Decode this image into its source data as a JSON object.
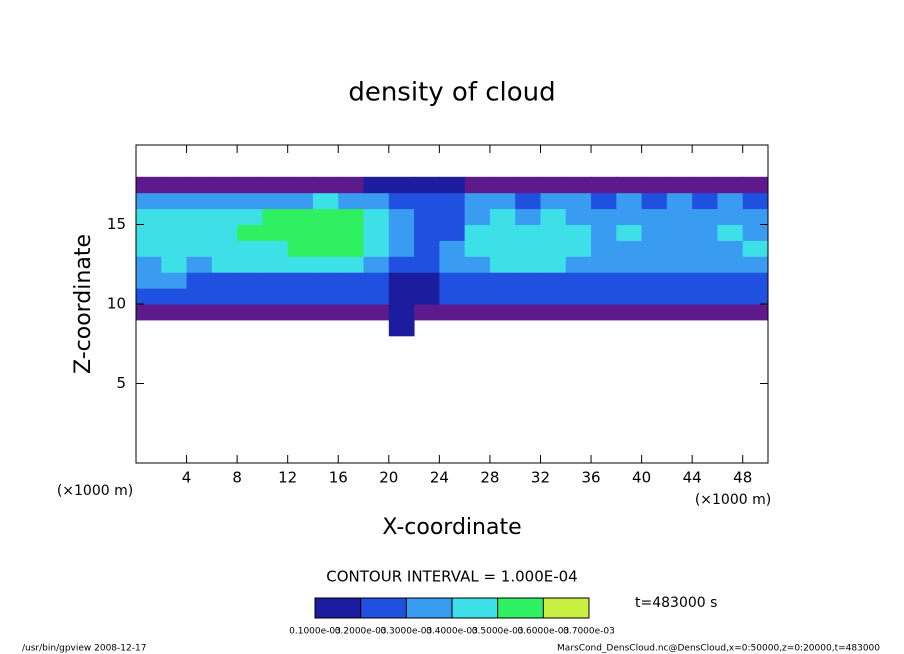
{
  "chart_data": {
    "type": "contour",
    "title": "density of cloud",
    "x_label": "X-coordinate",
    "y_label": "Z-coordinate",
    "x_unit": "(×1000 m)",
    "y_unit": "(×1000 m)",
    "xlim": [
      0,
      50
    ],
    "ylim": [
      0,
      20
    ],
    "xticks": [
      4,
      8,
      12,
      16,
      20,
      24,
      28,
      32,
      36,
      40,
      44,
      48
    ],
    "yticks": [
      5,
      10,
      15
    ],
    "x": [
      1,
      3,
      5,
      7,
      9,
      11,
      13,
      15,
      17,
      19,
      21,
      23,
      25,
      27,
      29,
      31,
      33,
      35,
      37,
      39,
      41,
      43,
      45,
      47,
      49
    ],
    "z": [
      8.5,
      9.5,
      10.5,
      11.5,
      12.5,
      13.5,
      14.5,
      15.5,
      16.5,
      17.5
    ],
    "values": [
      [
        0,
        0,
        0,
        0,
        0,
        0,
        0,
        0,
        0,
        0,
        0.00015,
        0,
        0,
        0,
        0,
        0,
        0,
        0,
        0,
        0,
        0,
        0,
        0,
        0,
        0
      ],
      [
        8e-05,
        8e-05,
        8e-05,
        8e-05,
        8e-05,
        8e-05,
        8e-05,
        8e-05,
        8e-05,
        8e-05,
        0.00018,
        8e-05,
        8e-05,
        8e-05,
        8e-05,
        8e-05,
        8e-05,
        8e-05,
        8e-05,
        8e-05,
        8e-05,
        8e-05,
        8e-05,
        8e-05,
        8e-05
      ],
      [
        0.00022,
        0.00022,
        0.00022,
        0.00022,
        0.00022,
        0.00022,
        0.00022,
        0.00022,
        0.00022,
        0.00022,
        0.00015,
        0.00012,
        0.00022,
        0.00022,
        0.00022,
        0.00022,
        0.00022,
        0.00022,
        0.00022,
        0.00022,
        0.00022,
        0.00022,
        0.00022,
        0.00022,
        0.00022
      ],
      [
        0.0003,
        0.0003,
        0.00028,
        0.00028,
        0.00028,
        0.00028,
        0.00028,
        0.00028,
        0.00028,
        0.00028,
        0.00018,
        0.00015,
        0.00028,
        0.00028,
        0.00028,
        0.00028,
        0.00028,
        0.00028,
        0.00028,
        0.00028,
        0.00028,
        0.00028,
        0.00028,
        0.00028,
        0.00028
      ],
      [
        0.00038,
        0.0004,
        0.00038,
        0.0004,
        0.00042,
        0.0004,
        0.00045,
        0.00045,
        0.00042,
        0.00038,
        0.0002,
        0.0002,
        0.0003,
        0.00038,
        0.0004,
        0.00042,
        0.0004,
        0.00038,
        0.00035,
        0.00035,
        0.00035,
        0.00033,
        0.00035,
        0.00033,
        0.00035
      ],
      [
        0.00045,
        0.00042,
        0.00045,
        0.0004,
        0.00045,
        0.00048,
        0.00052,
        0.00055,
        0.00052,
        0.00045,
        0.0003,
        0.00022,
        0.0003,
        0.00042,
        0.00045,
        0.00045,
        0.00042,
        0.00045,
        0.00038,
        0.00036,
        0.00038,
        0.00035,
        0.00038,
        0.00036,
        0.0004
      ],
      [
        0.00048,
        0.00045,
        0.00042,
        0.00045,
        0.0005,
        0.00052,
        0.00056,
        0.00058,
        0.00055,
        0.00045,
        0.0003,
        0.00022,
        0.00028,
        0.0004,
        0.00045,
        0.00042,
        0.00045,
        0.00042,
        0.00038,
        0.0004,
        0.00036,
        0.00038,
        0.00036,
        0.0004,
        0.00038
      ],
      [
        0.00042,
        0.0004,
        0.00045,
        0.00042,
        0.00045,
        0.0005,
        0.00052,
        0.00055,
        0.0005,
        0.0004,
        0.0003,
        0.00025,
        0.00028,
        0.00036,
        0.0004,
        0.00038,
        0.0004,
        0.00036,
        0.00035,
        0.00038,
        0.00035,
        0.00036,
        0.00035,
        0.00038,
        0.00036
      ],
      [
        0.00032,
        0.0003,
        0.00032,
        0.0003,
        0.00035,
        0.00035,
        0.00038,
        0.0004,
        0.00036,
        0.0003,
        0.00025,
        0.0002,
        0.00022,
        0.0003,
        0.0003,
        0.00028,
        0.0003,
        0.0003,
        0.00028,
        0.0003,
        0.00028,
        0.0003,
        0.00028,
        0.0003,
        0.00028
      ],
      [
        8e-05,
        8e-05,
        8e-05,
        8e-05,
        8e-05,
        8e-05,
        8e-05,
        8e-05,
        8e-05,
        0.0001,
        0.00015,
        0.00015,
        0.00012,
        8e-05,
        8e-05,
        8e-05,
        8e-05,
        8e-05,
        8e-05,
        8e-05,
        8e-05,
        8e-05,
        8e-05,
        8e-05,
        8e-05
      ]
    ],
    "levels": [
      {
        "value": 0.0001,
        "label": "0.1000e-03"
      },
      {
        "value": 0.0002,
        "label": "0.2000e-03"
      },
      {
        "value": 0.0003,
        "label": "0.3000e-03"
      },
      {
        "value": 0.0004,
        "label": "0.4000e-03"
      },
      {
        "value": 0.0005,
        "label": "0.5000e-03"
      },
      {
        "value": 0.0006,
        "label": "0.6000e-03"
      },
      {
        "value": 0.0007,
        "label": "0.7000e-03"
      }
    ],
    "colors": [
      "#5c1a8c",
      "#1c1c9e",
      "#2050e0",
      "#3a9cf0",
      "#3ee0e8",
      "#2ef060",
      "#c8f040",
      "#f06020"
    ],
    "contour_interval": "CONTOUR INTERVAL = 1.000E-04",
    "time_label": "t=483000 s",
    "footer_left": "/usr/bin/gpview   2008-12-17",
    "footer_right": "MarsCond_DensCloud.nc@DensCloud,x=0:50000,z=0:20000,t=483000"
  }
}
